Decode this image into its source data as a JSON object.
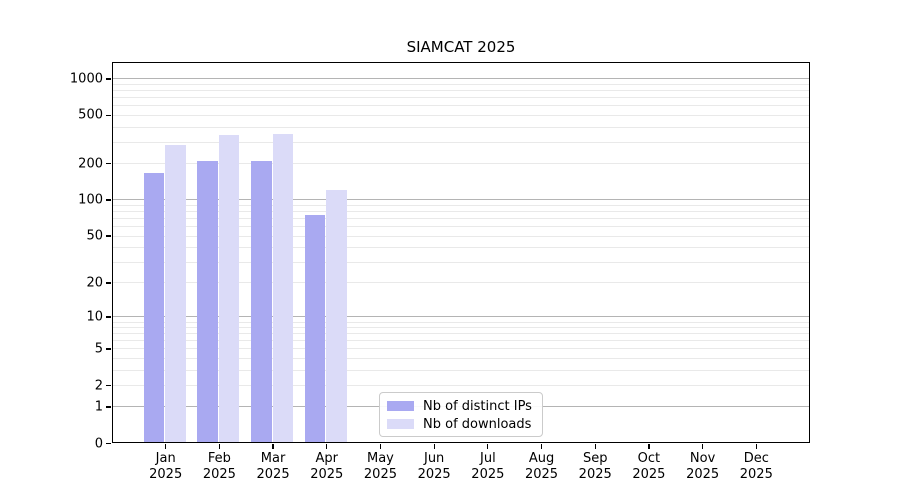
{
  "title": "SIAMCAT 2025",
  "colors": {
    "bar_distinct_ips": "#a9a9f1",
    "bar_downloads": "#dbdbf8",
    "major_gridline": "#b4b4b4",
    "minor_gridline": "#e9e9e9",
    "axis_spine": "#000000",
    "legend_border": "#cbcbcb",
    "text": "#000000"
  },
  "chart_data": {
    "type": "bar",
    "title": "SIAMCAT 2025",
    "categories": [
      "Jan",
      "Feb",
      "Mar",
      "Apr",
      "May",
      "Jun",
      "Jul",
      "Aug",
      "Sep",
      "Oct",
      "Nov",
      "Dec"
    ],
    "category_year": "2025",
    "series": [
      {
        "name": "Nb of distinct IPs",
        "color": "#a9a9f1",
        "values": [
          165,
          210,
          210,
          75,
          0,
          0,
          0,
          0,
          0,
          0,
          0,
          0
        ]
      },
      {
        "name": "Nb of downloads",
        "color": "#dbdbf8",
        "values": [
          285,
          340,
          350,
          120,
          0,
          0,
          0,
          0,
          0,
          0,
          0,
          0
        ]
      }
    ],
    "y_axis": {
      "scale": "log10(value+1)",
      "tick_values": [
        0,
        1,
        2,
        5,
        10,
        20,
        50,
        100,
        200,
        500,
        1000
      ],
      "major_grid_values": [
        1,
        10,
        100,
        1000
      ],
      "top_value": 1380,
      "ylim": [
        0,
        1380
      ]
    },
    "x_axis": {
      "tick_label_year": "2025"
    },
    "grid": true,
    "legend_position": "inside-lower-center"
  },
  "legend": {
    "entries": [
      {
        "label": "Nb of distinct IPs",
        "color": "#a9a9f1"
      },
      {
        "label": "Nb of downloads",
        "color": "#dbdbf8"
      }
    ]
  }
}
